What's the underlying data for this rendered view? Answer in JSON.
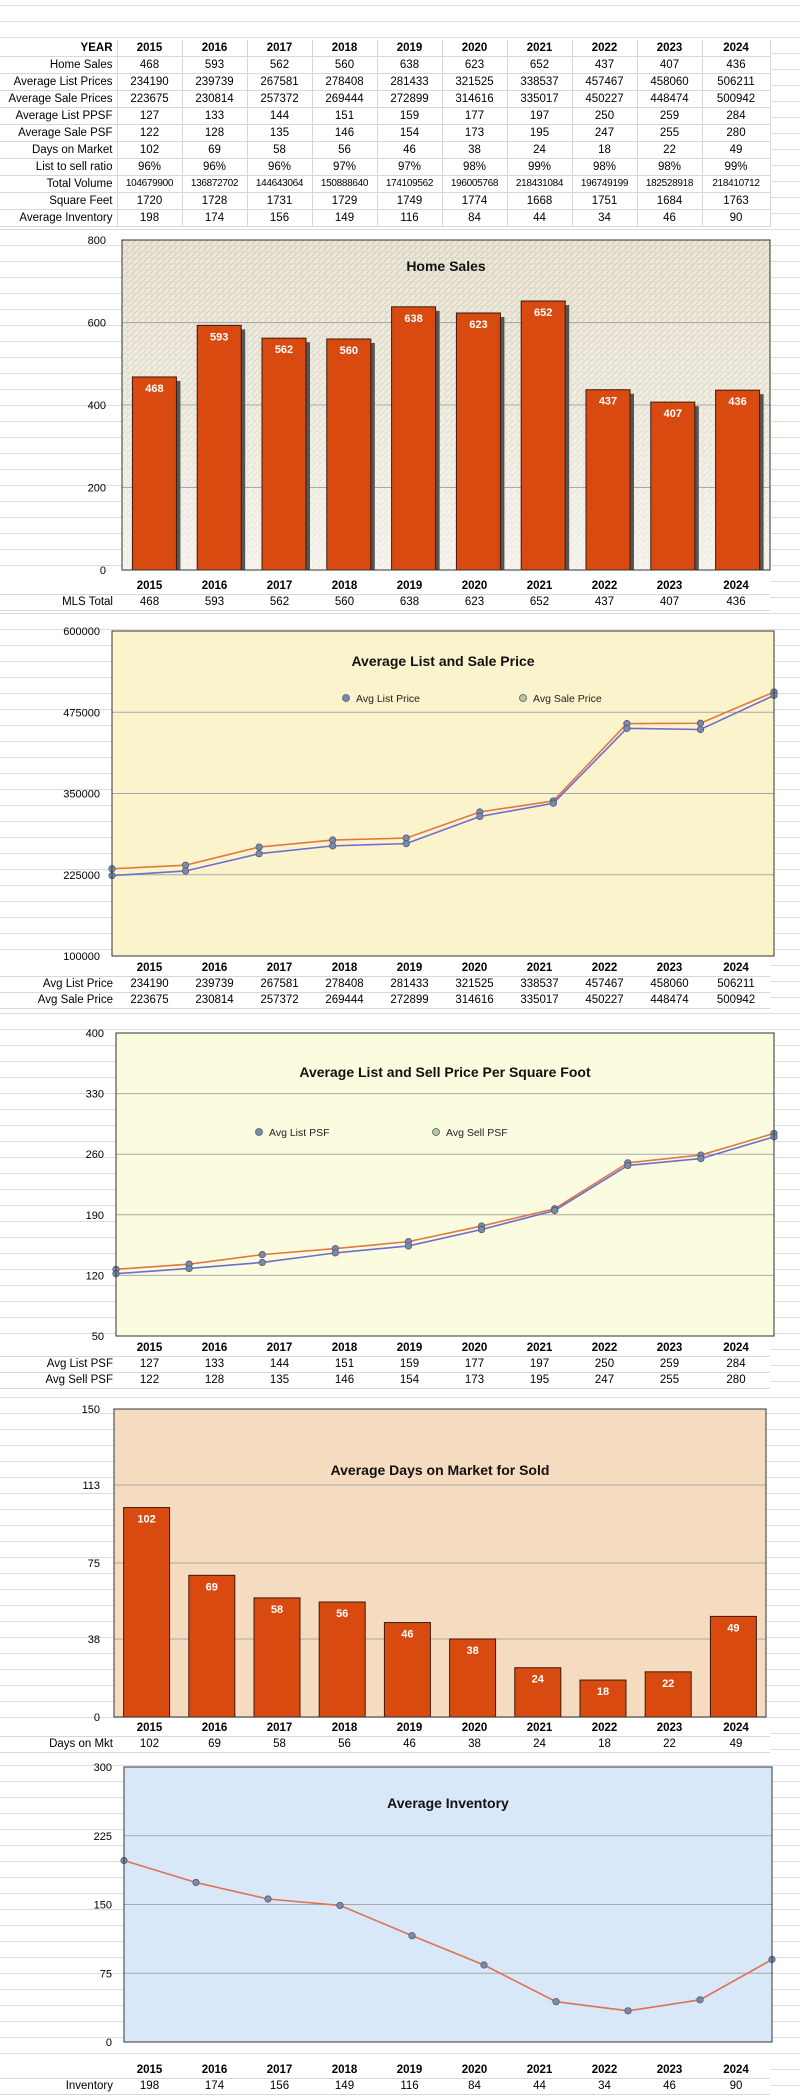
{
  "table": {
    "years": [
      "2015",
      "2016",
      "2017",
      "2018",
      "2019",
      "2020",
      "2021",
      "2022",
      "2023",
      "2024"
    ],
    "header_label": "YEAR",
    "rows": [
      {
        "label": "Home Sales",
        "values": [
          "468",
          "593",
          "562",
          "560",
          "638",
          "623",
          "652",
          "437",
          "407",
          "436"
        ]
      },
      {
        "label": "Average List Prices",
        "values": [
          "234190",
          "239739",
          "267581",
          "278408",
          "281433",
          "321525",
          "338537",
          "457467",
          "458060",
          "506211"
        ]
      },
      {
        "label": "Average Sale Prices",
        "values": [
          "223675",
          "230814",
          "257372",
          "269444",
          "272899",
          "314616",
          "335017",
          "450227",
          "448474",
          "500942"
        ]
      },
      {
        "label": "Average List PPSF",
        "values": [
          "127",
          "133",
          "144",
          "151",
          "159",
          "177",
          "197",
          "250",
          "259",
          "284"
        ]
      },
      {
        "label": "Average Sale PSF",
        "values": [
          "122",
          "128",
          "135",
          "146",
          "154",
          "173",
          "195",
          "247",
          "255",
          "280"
        ]
      },
      {
        "label": "Days on Market",
        "values": [
          "102",
          "69",
          "58",
          "56",
          "46",
          "38",
          "24",
          "18",
          "22",
          "49"
        ]
      },
      {
        "label": "List to sell ratio",
        "values": [
          "96%",
          "96%",
          "96%",
          "97%",
          "97%",
          "98%",
          "99%",
          "98%",
          "98%",
          "99%"
        ]
      },
      {
        "label": "Total Volume",
        "values": [
          "104679900",
          "136872702",
          "144643064",
          "150888640",
          "174109562",
          "196005768",
          "218431084",
          "196749199",
          "182528918",
          "218410712"
        ]
      },
      {
        "label": "Square Feet",
        "values": [
          "1720",
          "1728",
          "1731",
          "1729",
          "1749",
          "1774",
          "1668",
          "1751",
          "1684",
          "1763"
        ]
      },
      {
        "label": "Average Inventory",
        "values": [
          "198",
          "174",
          "156",
          "149",
          "116",
          "84",
          "44",
          "34",
          "46",
          "90"
        ]
      }
    ]
  },
  "charts": {
    "home_sales": {
      "rows": [
        {
          "label": "MLS Total",
          "values": [
            "468",
            "593",
            "562",
            "560",
            "638",
            "623",
            "652",
            "437",
            "407",
            "436"
          ]
        }
      ]
    },
    "list_sale": {
      "rows": [
        {
          "label": "Avg List Price",
          "values": [
            "234190",
            "239739",
            "267581",
            "278408",
            "281433",
            "321525",
            "338537",
            "457467",
            "458060",
            "506211"
          ]
        },
        {
          "label": "Avg Sale Price",
          "values": [
            "223675",
            "230814",
            "257372",
            "269444",
            "272899",
            "314616",
            "335017",
            "450227",
            "448474",
            "500942"
          ]
        }
      ]
    },
    "psf": {
      "rows": [
        {
          "label": "Avg List PSF",
          "values": [
            "127",
            "133",
            "144",
            "151",
            "159",
            "177",
            "197",
            "250",
            "259",
            "284"
          ]
        },
        {
          "label": "Avg Sell PSF",
          "values": [
            "122",
            "128",
            "135",
            "146",
            "154",
            "173",
            "195",
            "247",
            "255",
            "280"
          ]
        }
      ]
    },
    "dom": {
      "rows": [
        {
          "label": "Days on Mkt",
          "values": [
            "102",
            "69",
            "58",
            "56",
            "46",
            "38",
            "24",
            "18",
            "22",
            "49"
          ]
        }
      ]
    },
    "inventory": {
      "rows": [
        {
          "label": "Inventory",
          "values": [
            "198",
            "174",
            "156",
            "149",
            "116",
            "84",
            "44",
            "34",
            "46",
            "90"
          ]
        }
      ]
    }
  },
  "chart_data": [
    {
      "type": "bar",
      "title": "Home Sales",
      "categories": [
        "2015",
        "2016",
        "2017",
        "2018",
        "2019",
        "2020",
        "2021",
        "2022",
        "2023",
        "2024"
      ],
      "values": [
        468,
        593,
        562,
        560,
        638,
        623,
        652,
        437,
        407,
        436
      ],
      "ylim": [
        0,
        800
      ],
      "yticks": [
        "0",
        "200",
        "400",
        "600",
        "800"
      ],
      "grid": true,
      "bar_color": "#d94a10",
      "background": "textured"
    },
    {
      "type": "line",
      "title": "Average List and Sale Price",
      "categories": [
        "2015",
        "2016",
        "2017",
        "2018",
        "2019",
        "2020",
        "2021",
        "2022",
        "2023",
        "2024"
      ],
      "series": [
        {
          "name": "Avg List Price",
          "values": [
            234190,
            239739,
            267581,
            278408,
            281433,
            321525,
            338537,
            457467,
            458060,
            506211
          ],
          "color": "#e07840"
        },
        {
          "name": "Avg Sale Price",
          "values": [
            223675,
            230814,
            257372,
            269444,
            272899,
            314616,
            335017,
            450227,
            448474,
            500942
          ],
          "color": "#6b6fd0"
        }
      ],
      "ylim": [
        100000,
        600000
      ],
      "yticks": [
        "100000",
        "225000",
        "350000",
        "475000",
        "600000"
      ],
      "grid": true,
      "legend": "top",
      "background": "#fbf3cc"
    },
    {
      "type": "line",
      "title": "Average List and Sell Price Per Square Foot",
      "categories": [
        "2015",
        "2016",
        "2017",
        "2018",
        "2019",
        "2020",
        "2021",
        "2022",
        "2023",
        "2024"
      ],
      "series": [
        {
          "name": "Avg List PSF",
          "values": [
            127,
            133,
            144,
            151,
            159,
            177,
            197,
            250,
            259,
            284
          ],
          "color": "#e07840"
        },
        {
          "name": "Avg Sell PSF",
          "values": [
            122,
            128,
            135,
            146,
            154,
            173,
            195,
            247,
            255,
            280
          ],
          "color": "#6b6fd0"
        }
      ],
      "ylim": [
        50,
        400
      ],
      "yticks": [
        "50",
        "120",
        "190",
        "260",
        "330",
        "400"
      ],
      "grid": true,
      "legend": "top",
      "background": "#fbfbdf"
    },
    {
      "type": "bar",
      "title": "Average Days on Market for Sold",
      "categories": [
        "2015",
        "2016",
        "2017",
        "2018",
        "2019",
        "2020",
        "2021",
        "2022",
        "2023",
        "2024"
      ],
      "values": [
        102,
        69,
        58,
        56,
        46,
        38,
        24,
        18,
        22,
        49
      ],
      "ylim": [
        0,
        150
      ],
      "yticks": [
        "0",
        "38",
        "75",
        "113",
        "150"
      ],
      "grid": true,
      "bar_color": "#d94a10",
      "background": "#f5dcc0"
    },
    {
      "type": "line",
      "title": "Average Inventory",
      "categories": [
        "2015",
        "2016",
        "2017",
        "2018",
        "2019",
        "2020",
        "2021",
        "2022",
        "2023",
        "2024"
      ],
      "series": [
        {
          "name": "",
          "values": [
            198,
            174,
            156,
            149,
            116,
            84,
            44,
            34,
            46,
            90
          ],
          "color": "#e07050"
        }
      ],
      "ylim": [
        0,
        300
      ],
      "yticks": [
        "0",
        "75",
        "150",
        "225",
        "300"
      ],
      "grid": true,
      "background": "#d8e8f8"
    }
  ]
}
